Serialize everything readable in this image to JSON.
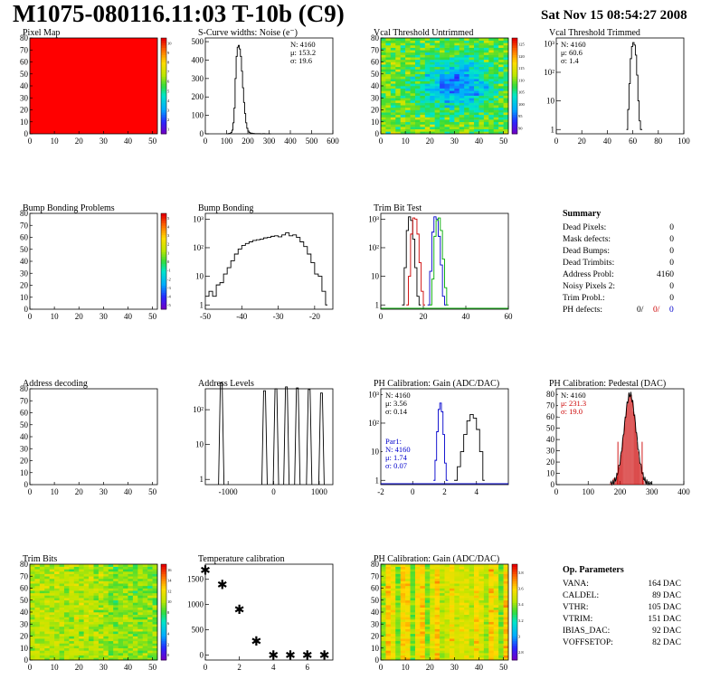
{
  "header": {
    "title": "M1075-080116.11:03 T-10b (C9)",
    "date": "Sat Nov 15 08:54:27 2008"
  },
  "panels": [
    {
      "title": "Pixel Map"
    },
    {
      "title": "S-Curve widths: Noise (e⁻)"
    },
    {
      "title": "Vcal Threshold Untrimmed"
    },
    {
      "title": "Vcal Threshold Trimmed"
    },
    {
      "title": "Bump Bonding Problems"
    },
    {
      "title": "Bump Bonding"
    },
    {
      "title": "Trim Bit Test"
    },
    {
      "title": "Summary"
    },
    {
      "title": "Address decoding"
    },
    {
      "title": "Address Levels"
    },
    {
      "title": "PH Calibration: Gain (ADC/DAC)"
    },
    {
      "title": "PH Calibration: Pedestal (DAC)"
    },
    {
      "title": "Trim Bits"
    },
    {
      "title": "Temperature calibration"
    },
    {
      "title": "PH Calibration: Gain (ADC/DAC)"
    },
    {
      "title": "Op. Parameters"
    }
  ],
  "chart_data": [
    {
      "id": "pixel_map",
      "type": "heatmap",
      "title": "Pixel Map",
      "x_ticks": [
        "0",
        "10",
        "20",
        "30",
        "40",
        "50"
      ],
      "y_ticks": [
        "0",
        "10",
        "20",
        "30",
        "40",
        "50",
        "60",
        "70",
        "80"
      ],
      "xlim": [
        0,
        52
      ],
      "ylim": [
        0,
        80
      ],
      "fill": "uniform",
      "fill_value": 10,
      "colorbar_ticks": [
        "1",
        "2",
        "3",
        "4",
        "5",
        "6",
        "7",
        "8",
        "9",
        "10"
      ]
    },
    {
      "id": "noise",
      "type": "line",
      "title": "S-Curve widths: Noise (e⁻)",
      "x_ticks": [
        "0",
        "100",
        "200",
        "300",
        "400",
        "500",
        "600"
      ],
      "y_ticks": [
        "0",
        "100",
        "200",
        "300",
        "400",
        "500"
      ],
      "xlim": [
        0,
        600
      ],
      "ylim": [
        0,
        520
      ],
      "x": [
        100,
        110,
        120,
        125,
        130,
        135,
        140,
        145,
        150,
        155,
        160,
        165,
        170,
        175,
        180,
        185,
        190,
        195,
        200,
        205,
        210,
        220,
        230,
        240,
        250,
        260,
        270,
        280,
        290,
        300
      ],
      "y": [
        0,
        2,
        8,
        20,
        60,
        140,
        300,
        420,
        470,
        480,
        460,
        420,
        340,
        250,
        170,
        110,
        60,
        30,
        15,
        8,
        4,
        2,
        1,
        1,
        1,
        0,
        1,
        0,
        0,
        0
      ],
      "stats": {
        "N": "N: 4160",
        "mu": "μ: 153.2",
        "sigma": "σ: 19.6"
      }
    },
    {
      "id": "vcal_untrimmed",
      "type": "heatmap",
      "title": "Vcal Threshold Untrimmed",
      "x_ticks": [
        "0",
        "10",
        "20",
        "30",
        "40",
        "50"
      ],
      "y_ticks": [
        "0",
        "10",
        "20",
        "30",
        "40",
        "50",
        "60",
        "70",
        "80"
      ],
      "xlim": [
        0,
        52
      ],
      "ylim": [
        0,
        80
      ],
      "colorbar_ticks": [
        "90",
        "95",
        "100",
        "105",
        "110",
        "115",
        "120",
        "125"
      ]
    },
    {
      "id": "vcal_trimmed",
      "type": "line",
      "title": "Vcal Threshold Trimmed",
      "log_y": true,
      "x_ticks": [
        "0",
        "20",
        "40",
        "60",
        "80",
        "100"
      ],
      "y_ticks": [
        "1",
        "10",
        "10²",
        "10³"
      ],
      "xlim": [
        0,
        100
      ],
      "x": [
        55,
        56,
        57,
        58,
        59,
        60,
        61,
        62,
        63,
        64,
        65,
        66
      ],
      "y": [
        1,
        5,
        40,
        300,
        800,
        1100,
        900,
        400,
        80,
        10,
        2,
        1
      ],
      "stats": {
        "N": "N: 4160",
        "mu": "μ: 60.6",
        "sigma": "σ:  1.4"
      }
    },
    {
      "id": "bb_problems",
      "type": "heatmap",
      "title": "Bump Bonding Problems",
      "x_ticks": [
        "0",
        "10",
        "20",
        "30",
        "40",
        "50"
      ],
      "y_ticks": [
        "0",
        "10",
        "20",
        "30",
        "40",
        "50",
        "60",
        "70",
        "80"
      ],
      "xlim": [
        0,
        52
      ],
      "ylim": [
        0,
        80
      ],
      "fill": "empty",
      "colorbar_ticks": [
        "-5",
        "-4",
        "-3",
        "-2",
        "-1",
        "0",
        "1",
        "2",
        "3",
        "4",
        "5"
      ]
    },
    {
      "id": "bump_bonding",
      "type": "line",
      "title": "Bump Bonding",
      "log_y": true,
      "x_ticks": [
        "-50",
        "-40",
        "-30",
        "-20"
      ],
      "y_ticks": [
        "1",
        "10",
        "10²",
        "10³"
      ],
      "xlim": [
        -50,
        -15
      ],
      "x": [
        -50,
        -49,
        -48,
        -47,
        -46,
        -45,
        -44,
        -43,
        -42,
        -41,
        -40,
        -39,
        -38,
        -37,
        -36,
        -35,
        -34,
        -33,
        -32,
        -31,
        -30,
        -29,
        -28,
        -27,
        -26,
        -25,
        -24,
        -23,
        -22,
        -21,
        -20,
        -19,
        -18,
        -17
      ],
      "y": [
        2,
        3,
        2,
        5,
        6,
        12,
        20,
        35,
        60,
        90,
        120,
        140,
        160,
        180,
        190,
        200,
        220,
        230,
        250,
        260,
        240,
        280,
        330,
        260,
        280,
        230,
        160,
        110,
        60,
        30,
        12,
        10,
        3,
        1
      ]
    },
    {
      "id": "trim_bit_test",
      "type": "line",
      "title": "Trim Bit Test",
      "log_y": true,
      "x_ticks": [
        "0",
        "20",
        "40",
        "60"
      ],
      "y_ticks": [
        "1",
        "10",
        "10²",
        "10³"
      ],
      "xlim": [
        0,
        60
      ],
      "series": [
        {
          "color": "#000000",
          "x": [
            10,
            11,
            12,
            13,
            14,
            15,
            16,
            17,
            18
          ],
          "y": [
            1,
            20,
            400,
            1200,
            900,
            200,
            20,
            2,
            1
          ]
        },
        {
          "color": "#cc0000",
          "x": [
            12,
            13,
            14,
            15,
            16,
            17,
            18,
            19,
            20
          ],
          "y": [
            1,
            10,
            300,
            1100,
            1000,
            300,
            30,
            3,
            1
          ]
        },
        {
          "color": "#0000cc",
          "x": [
            22,
            23,
            24,
            25,
            26,
            27,
            28,
            29,
            30
          ],
          "y": [
            1,
            15,
            350,
            1200,
            1000,
            250,
            25,
            2,
            1
          ]
        },
        {
          "color": "#00aa00",
          "x": [
            23,
            24,
            25,
            26,
            27,
            28,
            29,
            30,
            31
          ],
          "y": [
            1,
            8,
            250,
            900,
            1100,
            400,
            40,
            4,
            1
          ]
        }
      ]
    },
    {
      "id": "address_decoding",
      "type": "heatmap",
      "title": "Address decoding",
      "x_ticks": [
        "0",
        "10",
        "20",
        "30",
        "40",
        "50"
      ],
      "y_ticks": [
        "0",
        "10",
        "20",
        "30",
        "40",
        "50",
        "60",
        "70",
        "80"
      ],
      "xlim": [
        0,
        52
      ],
      "ylim": [
        0,
        80
      ],
      "fill": "empty"
    },
    {
      "id": "address_levels",
      "type": "line",
      "title": "Address Levels",
      "log_y": true,
      "x_ticks": [
        "-1000",
        "0",
        "1000"
      ],
      "y_ticks": [
        "1",
        "10",
        "10²"
      ],
      "xlim": [
        -1500,
        1300
      ],
      "peaks": [
        [
          -1150,
          600
        ],
        [
          -200,
          350
        ],
        [
          50,
          400
        ],
        [
          280,
          450
        ],
        [
          520,
          420
        ],
        [
          780,
          380
        ],
        [
          1050,
          300
        ]
      ]
    },
    {
      "id": "ph_gain",
      "type": "line",
      "title": "PH Calibration: Gain (ADC/DAC)",
      "log_y": true,
      "x_ticks": [
        "-2",
        "0",
        "2",
        "4"
      ],
      "y_ticks": [
        "1",
        "10",
        "10²",
        "10³"
      ],
      "xlim": [
        -2,
        6
      ],
      "series": [
        {
          "color": "#000000",
          "x": [
            2.6,
            2.8,
            3.0,
            3.2,
            3.4,
            3.6,
            3.8,
            4.0,
            4.2,
            4.4
          ],
          "y": [
            1,
            3,
            10,
            40,
            120,
            200,
            150,
            60,
            10,
            1
          ]
        },
        {
          "color": "#0000cc",
          "x": [
            1.3,
            1.4,
            1.5,
            1.6,
            1.7,
            1.8,
            1.9,
            2.0,
            2.1
          ],
          "y": [
            1,
            5,
            50,
            300,
            500,
            250,
            40,
            4,
            1
          ]
        }
      ],
      "stats": {
        "N": "N: 4160",
        "mu": "μ: 3.56",
        "sigma": "σ: 0.14"
      },
      "stats2": {
        "label": "Par1:",
        "N": "N: 4160",
        "mu": "μ: 1.74",
        "sigma": "σ: 0.07"
      }
    },
    {
      "id": "ph_pedestal",
      "type": "bar",
      "title": "PH Calibration: Pedestal (DAC)",
      "x_ticks": [
        "0",
        "100",
        "200",
        "300",
        "400"
      ],
      "y_ticks": [
        "0",
        "10",
        "20",
        "30",
        "40",
        "50",
        "60",
        "70",
        "80"
      ],
      "xlim": [
        0,
        400
      ],
      "ylim": [
        0,
        85
      ],
      "stats": {
        "N": "N: 4160",
        "mu": "μ: 231.3",
        "sigma": "σ: 19.0"
      }
    },
    {
      "id": "trim_bits",
      "type": "heatmap",
      "title": "Trim Bits",
      "x_ticks": [
        "0",
        "10",
        "20",
        "30",
        "40",
        "50"
      ],
      "y_ticks": [
        "0",
        "10",
        "20",
        "30",
        "40",
        "50",
        "60",
        "70",
        "80"
      ],
      "xlim": [
        0,
        52
      ],
      "ylim": [
        0,
        80
      ],
      "colorbar_ticks": [
        "0",
        "2",
        "4",
        "6",
        "8",
        "10",
        "12",
        "14",
        "16"
      ]
    },
    {
      "id": "temperature",
      "type": "scatter",
      "title": "Temperature calibration",
      "x_ticks": [
        "0",
        "2",
        "4",
        "6"
      ],
      "y_ticks": [
        "0",
        "500",
        "1000",
        "1500"
      ],
      "xlim": [
        0,
        7.5
      ],
      "ylim": [
        -100,
        1800
      ],
      "x": [
        0,
        1,
        2,
        3,
        4,
        5,
        6,
        7
      ],
      "y": [
        1680,
        1400,
        900,
        280,
        0,
        0,
        0,
        0
      ]
    },
    {
      "id": "ph_gain_map",
      "type": "heatmap",
      "title": "PH Calibration: Gain (ADC/DAC)",
      "x_ticks": [
        "0",
        "10",
        "20",
        "30",
        "40",
        "50"
      ],
      "y_ticks": [
        "0",
        "10",
        "20",
        "30",
        "40",
        "50",
        "60",
        "70",
        "80"
      ],
      "xlim": [
        0,
        52
      ],
      "ylim": [
        0,
        80
      ],
      "colorbar_ticks": [
        "2.8",
        "3",
        "3.2",
        "3.4",
        "3.6",
        "3.8"
      ]
    }
  ],
  "summary": {
    "title": "Summary",
    "rows": [
      {
        "label": "Dead Pixels:",
        "value": "0"
      },
      {
        "label": "Mask defects:",
        "value": "0"
      },
      {
        "label": "Dead Bumps:",
        "value": "0"
      },
      {
        "label": "Dead Trimbits:",
        "value": "0"
      },
      {
        "label": "Address Probl:",
        "value": "4160"
      },
      {
        "label": "Noisy Pixels 2:",
        "value": "0"
      },
      {
        "label": "Trim Probl.:",
        "value": "0"
      }
    ],
    "ph_label": "PH defects:",
    "ph_values": [
      "0/",
      "0/",
      "0"
    ]
  },
  "op_params": {
    "title": "Op. Parameters",
    "rows": [
      {
        "label": "VANA:",
        "value": "164 DAC"
      },
      {
        "label": "CALDEL:",
        "value": "89 DAC"
      },
      {
        "label": "VTHR:",
        "value": "105 DAC"
      },
      {
        "label": "VTRIM:",
        "value": "151 DAC"
      },
      {
        "label": "IBIAS_DAC:",
        "value": "92 DAC"
      },
      {
        "label": "VOFFSETOP:",
        "value": "82 DAC"
      }
    ]
  }
}
